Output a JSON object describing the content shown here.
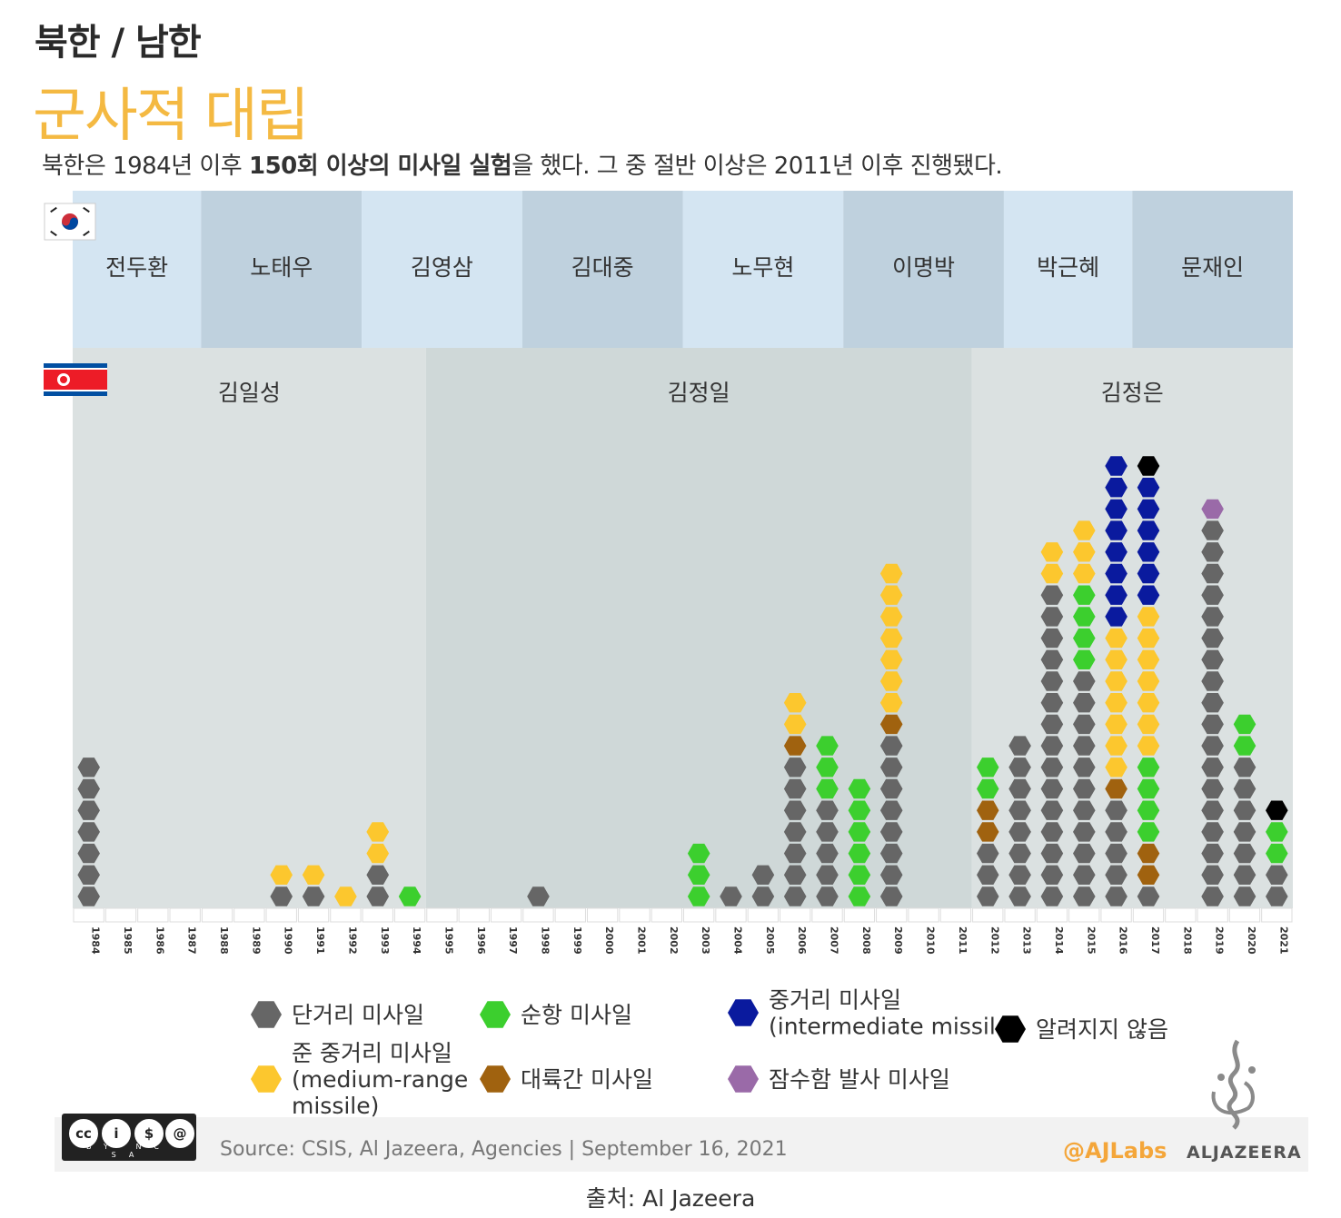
{
  "header": {
    "kicker": "북한 / 남한",
    "title": "군사적 대립",
    "subtitle_pre": "북한은 1984년 이후 ",
    "subtitle_bold": "150회 이상의 미사일 실험",
    "subtitle_post": "을 했다. 그 중 절반 이상은 2011년 이후 진행됐다."
  },
  "south_korea_presidents": [
    {
      "name": "전두환",
      "from": 1984,
      "to": 1987
    },
    {
      "name": "노태우",
      "from": 1988,
      "to": 1992
    },
    {
      "name": "김영삼",
      "from": 1993,
      "to": 1997
    },
    {
      "name": "김대중",
      "from": 1998,
      "to": 2002
    },
    {
      "name": "노무현",
      "from": 2003,
      "to": 2007
    },
    {
      "name": "이명박",
      "from": 2008,
      "to": 2012
    },
    {
      "name": "박근혜",
      "from": 2013,
      "to": 2016
    },
    {
      "name": "문재인",
      "from": 2017,
      "to": 2021
    }
  ],
  "north_korea_leaders": [
    {
      "name": "김일성",
      "from": 1984,
      "to": 1994
    },
    {
      "name": "김정일",
      "from": 1995,
      "to": 2011
    },
    {
      "name": "김정은",
      "from": 2012,
      "to": 2021
    }
  ],
  "chart_data": {
    "type": "bar",
    "stacked": true,
    "mark": "stacked hexagon dots, one per missile test",
    "categories": [
      "1984",
      "1985",
      "1986",
      "1987",
      "1988",
      "1989",
      "1990",
      "1991",
      "1992",
      "1993",
      "1994",
      "1995",
      "1996",
      "1997",
      "1998",
      "1999",
      "2000",
      "2001",
      "2002",
      "2003",
      "2004",
      "2005",
      "2006",
      "2007",
      "2008",
      "2009",
      "2010",
      "2011",
      "2012",
      "2013",
      "2014",
      "2015",
      "2016",
      "2017",
      "2018",
      "2019",
      "2020",
      "2021"
    ],
    "stack_order": [
      "short",
      "icbm",
      "cruise",
      "medium",
      "intermediate",
      "slbm",
      "unknown"
    ],
    "series": [
      {
        "key": "short",
        "name": "단거리 미사일",
        "color": "#666666",
        "values": [
          7,
          0,
          0,
          0,
          0,
          0,
          1,
          1,
          0,
          2,
          0,
          0,
          0,
          0,
          1,
          0,
          0,
          0,
          0,
          0,
          1,
          2,
          7,
          5,
          0,
          8,
          0,
          0,
          3,
          8,
          15,
          11,
          5,
          1,
          0,
          18,
          7,
          2
        ]
      },
      {
        "key": "cruise",
        "name": "순항 미사일",
        "color": "#3ccf2e",
        "values": [
          0,
          0,
          0,
          0,
          0,
          0,
          0,
          0,
          0,
          0,
          1,
          0,
          0,
          0,
          0,
          0,
          0,
          0,
          0,
          3,
          0,
          0,
          0,
          3,
          6,
          0,
          0,
          0,
          2,
          0,
          0,
          4,
          0,
          4,
          0,
          0,
          2,
          2
        ]
      },
      {
        "key": "medium",
        "name": "준 중거리 미사일 (medium-range missile)",
        "color": "#fcc72e",
        "values": [
          0,
          0,
          0,
          0,
          0,
          0,
          1,
          1,
          1,
          2,
          0,
          0,
          0,
          0,
          0,
          0,
          0,
          0,
          0,
          0,
          0,
          0,
          2,
          0,
          0,
          7,
          0,
          0,
          0,
          0,
          2,
          3,
          7,
          7,
          0,
          0,
          0,
          0
        ]
      },
      {
        "key": "icbm",
        "name": "대륙간 미사일",
        "color": "#a0620f",
        "values": [
          0,
          0,
          0,
          0,
          0,
          0,
          0,
          0,
          0,
          0,
          0,
          0,
          0,
          0,
          0,
          0,
          0,
          0,
          0,
          0,
          0,
          0,
          1,
          0,
          0,
          1,
          0,
          0,
          2,
          0,
          0,
          0,
          1,
          2,
          0,
          0,
          0,
          0
        ]
      },
      {
        "key": "intermediate",
        "name": "중거리 미사일 (intermediate missile)",
        "color": "#0a1a9e",
        "values": [
          0,
          0,
          0,
          0,
          0,
          0,
          0,
          0,
          0,
          0,
          0,
          0,
          0,
          0,
          0,
          0,
          0,
          0,
          0,
          0,
          0,
          0,
          0,
          0,
          0,
          0,
          0,
          0,
          0,
          0,
          0,
          0,
          8,
          6,
          0,
          0,
          0,
          0
        ]
      },
      {
        "key": "slbm",
        "name": "잠수함 발사 미사일",
        "color": "#9a6aa8",
        "values": [
          0,
          0,
          0,
          0,
          0,
          0,
          0,
          0,
          0,
          0,
          0,
          0,
          0,
          0,
          0,
          0,
          0,
          0,
          0,
          0,
          0,
          0,
          0,
          0,
          0,
          0,
          0,
          0,
          0,
          0,
          0,
          0,
          0,
          0,
          0,
          1,
          0,
          0
        ]
      },
      {
        "key": "unknown",
        "name": "알려지지 않음",
        "color": "#000000",
        "values": [
          0,
          0,
          0,
          0,
          0,
          0,
          0,
          0,
          0,
          0,
          0,
          0,
          0,
          0,
          0,
          0,
          0,
          0,
          0,
          0,
          0,
          0,
          0,
          0,
          0,
          0,
          0,
          0,
          0,
          0,
          0,
          0,
          0,
          1,
          0,
          0,
          0,
          1
        ]
      }
    ],
    "legend": [
      {
        "key": "short",
        "lines": [
          "단거리 미사일"
        ]
      },
      {
        "key": "cruise",
        "lines": [
          "순항 미사일"
        ]
      },
      {
        "key": "intermediate",
        "lines": [
          "중거리 미사일",
          "(intermediate missile)"
        ]
      },
      {
        "key": "unknown",
        "lines": [
          "알려지지 않음"
        ]
      },
      {
        "key": "medium",
        "lines": [
          "준 중거리 미사일",
          "(medium-range",
          "missile)"
        ]
      },
      {
        "key": "icbm",
        "lines": [
          "대륙간 미사일"
        ]
      },
      {
        "key": "slbm",
        "lines": [
          "잠수함 발사 미사일"
        ]
      }
    ]
  },
  "footer": {
    "source": "Source: CSIS, Al Jazeera, Agencies  |  September 16, 2021",
    "ajlabs": "@AJLabs",
    "brand": "ALJAZEERA",
    "credit": "출처: Al Jazeera",
    "cc_labels": "BY NC SA"
  },
  "colors": {
    "title": "#f4b942",
    "sk_band_light": "#d4e5f2",
    "sk_band_dark": "#bfd1de",
    "nk_band_light": "#dbe1e1",
    "nk_band_dark": "#cfd8d8"
  }
}
